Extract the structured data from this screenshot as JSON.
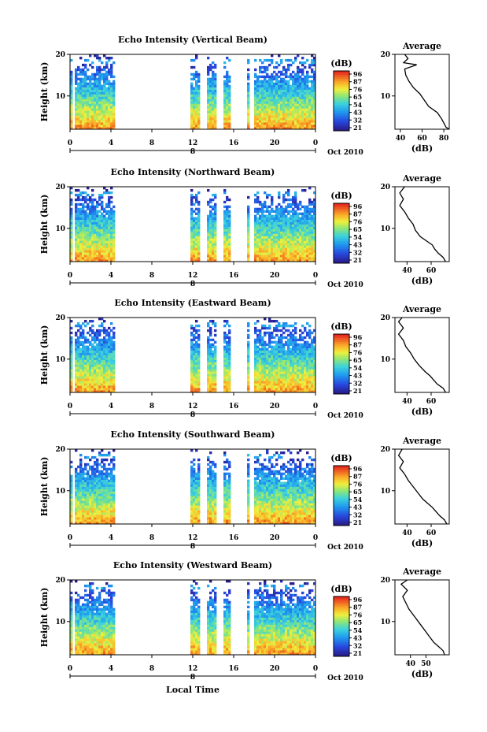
{
  "figure": {
    "xlabel": "Local Time",
    "date_label": "Oct 2010"
  },
  "chart_data": [
    {
      "type": "heatmap",
      "title": "Echo Intensity (Vertical Beam)",
      "ylabel": "Height (km)",
      "xlabel": "Local Time",
      "x_ticks": [
        "0",
        "4",
        "8",
        "12",
        "16",
        "20",
        "0"
      ],
      "day_label": "8",
      "y_ticks": [
        "20",
        "10"
      ],
      "xlim": [
        0,
        24
      ],
      "ylim": [
        2,
        20
      ],
      "data_gaps_hours": [
        [
          4.3,
          11.8
        ],
        [
          12.8,
          13.5
        ],
        [
          14.4,
          14.9
        ],
        [
          15.6,
          17.4
        ],
        [
          17.6,
          18.1
        ],
        [
          18.6,
          18.8
        ]
      ],
      "colorbar": {
        "unit": "(dB)",
        "ticks": [
          "96",
          "87",
          "76",
          "65",
          "54",
          "43",
          "32",
          "21"
        ]
      },
      "average_profile": {
        "title": "Average",
        "xlabel": "(dB)",
        "x_ticks": [
          "40",
          "60",
          "80"
        ],
        "xlim": [
          35,
          85
        ],
        "y_ticks": [
          "20",
          "10"
        ],
        "points": [
          [
            44,
            20
          ],
          [
            47,
            19
          ],
          [
            43,
            18
          ],
          [
            55,
            17.5
          ],
          [
            44,
            16.5
          ],
          [
            45,
            15
          ],
          [
            48,
            13.5
          ],
          [
            52,
            12
          ],
          [
            58,
            10.5
          ],
          [
            62,
            9
          ],
          [
            66,
            7.5
          ],
          [
            74,
            6
          ],
          [
            78,
            4.5
          ],
          [
            80,
            3.5
          ],
          [
            82,
            2.5
          ],
          [
            85,
            2
          ]
        ]
      }
    },
    {
      "type": "heatmap",
      "title": "Echo Intensity (Northward Beam)",
      "ylabel": "Height (km)",
      "xlabel": "Local Time",
      "x_ticks": [
        "0",
        "4",
        "8",
        "12",
        "16",
        "20",
        "0"
      ],
      "day_label": "8",
      "y_ticks": [
        "20",
        "10"
      ],
      "xlim": [
        0,
        24
      ],
      "ylim": [
        2,
        20
      ],
      "data_gaps_hours": [
        [
          4.3,
          11.8
        ],
        [
          12.8,
          13.5
        ],
        [
          14.4,
          14.9
        ],
        [
          15.6,
          17.4
        ],
        [
          17.6,
          18.1
        ]
      ],
      "colorbar": {
        "unit": "(dB)",
        "ticks": [
          "96",
          "87",
          "76",
          "65",
          "54",
          "43",
          "32",
          "21"
        ]
      },
      "average_profile": {
        "title": "Average",
        "xlabel": "(dB)",
        "x_ticks": [
          "40",
          "60"
        ],
        "xlim": [
          30,
          75
        ],
        "y_ticks": [
          "20",
          "10"
        ],
        "points": [
          [
            38,
            20
          ],
          [
            34,
            18.5
          ],
          [
            37,
            17
          ],
          [
            34,
            15.5
          ],
          [
            38,
            14
          ],
          [
            41,
            12.5
          ],
          [
            45,
            11
          ],
          [
            47,
            9.5
          ],
          [
            51,
            8
          ],
          [
            56,
            7
          ],
          [
            61,
            6
          ],
          [
            63,
            5
          ],
          [
            66,
            4
          ],
          [
            70,
            3
          ],
          [
            72,
            2
          ]
        ]
      }
    },
    {
      "type": "heatmap",
      "title": "Echo Intensity (Eastward Beam)",
      "ylabel": "Height (km)",
      "xlabel": "Local Time",
      "x_ticks": [
        "0",
        "4",
        "8",
        "12",
        "16",
        "20",
        "0"
      ],
      "day_label": "8",
      "y_ticks": [
        "20",
        "10"
      ],
      "xlim": [
        0,
        24
      ],
      "ylim": [
        2,
        20
      ],
      "data_gaps_hours": [
        [
          4.3,
          11.8
        ],
        [
          12.8,
          13.5
        ],
        [
          14.4,
          14.9
        ],
        [
          15.6,
          17.4
        ],
        [
          17.6,
          18.1
        ]
      ],
      "colorbar": {
        "unit": "(dB)",
        "ticks": [
          "96",
          "87",
          "76",
          "65",
          "54",
          "43",
          "32",
          "21"
        ]
      },
      "average_profile": {
        "title": "Average",
        "xlabel": "(dB)",
        "x_ticks": [
          "40",
          "60"
        ],
        "xlim": [
          30,
          75
        ],
        "y_ticks": [
          "20",
          "10"
        ],
        "points": [
          [
            36,
            20
          ],
          [
            33,
            19
          ],
          [
            37,
            17.5
          ],
          [
            33,
            16
          ],
          [
            37,
            14.5
          ],
          [
            39,
            13
          ],
          [
            43,
            11.5
          ],
          [
            46,
            10
          ],
          [
            50,
            8.5
          ],
          [
            55,
            7
          ],
          [
            59,
            6
          ],
          [
            62,
            5
          ],
          [
            65,
            4
          ],
          [
            70,
            3
          ],
          [
            72,
            2
          ]
        ]
      }
    },
    {
      "type": "heatmap",
      "title": "Echo Intensity (Southward Beam)",
      "ylabel": "Height (km)",
      "xlabel": "Local Time",
      "x_ticks": [
        "0",
        "4",
        "8",
        "12",
        "16",
        "20",
        "0"
      ],
      "day_label": "8",
      "y_ticks": [
        "20",
        "10"
      ],
      "xlim": [
        0,
        24
      ],
      "ylim": [
        2,
        20
      ],
      "data_gaps_hours": [
        [
          4.3,
          11.8
        ],
        [
          12.8,
          13.5
        ],
        [
          14.4,
          14.9
        ],
        [
          15.6,
          17.4
        ],
        [
          17.6,
          18.1
        ]
      ],
      "colorbar": {
        "unit": "(dB)",
        "ticks": [
          "96",
          "87",
          "76",
          "65",
          "54",
          "43",
          "32",
          "21"
        ]
      },
      "average_profile": {
        "title": "Average",
        "xlabel": "(dB)",
        "x_ticks": [
          "40",
          "60"
        ],
        "xlim": [
          30,
          75
        ],
        "y_ticks": [
          "20",
          "10"
        ],
        "points": [
          [
            36,
            20
          ],
          [
            33,
            18.5
          ],
          [
            37,
            17
          ],
          [
            34,
            15.5
          ],
          [
            38,
            14
          ],
          [
            41,
            12.5
          ],
          [
            45,
            11
          ],
          [
            49,
            9.5
          ],
          [
            53,
            8
          ],
          [
            57,
            7
          ],
          [
            61,
            6
          ],
          [
            64,
            5
          ],
          [
            67,
            4
          ],
          [
            71,
            3
          ],
          [
            73,
            2
          ]
        ]
      }
    },
    {
      "type": "heatmap",
      "title": "Echo Intensity (Westward Beam)",
      "ylabel": "Height (km)",
      "xlabel": "Local Time",
      "x_ticks": [
        "0",
        "4",
        "8",
        "12",
        "16",
        "20",
        "0"
      ],
      "day_label": "8",
      "y_ticks": [
        "20",
        "10"
      ],
      "xlim": [
        0,
        24
      ],
      "ylim": [
        2,
        20
      ],
      "data_gaps_hours": [
        [
          4.3,
          11.8
        ],
        [
          12.8,
          13.5
        ],
        [
          14.4,
          14.9
        ],
        [
          15.6,
          17.4
        ],
        [
          17.6,
          18.1
        ]
      ],
      "colorbar": {
        "unit": "(dB)",
        "ticks": [
          "96",
          "87",
          "76",
          "65",
          "54",
          "43",
          "32",
          "21"
        ]
      },
      "average_profile": {
        "title": "Average",
        "xlabel": "(dB)",
        "x_ticks": [
          "40",
          "50"
        ],
        "xlim": [
          30,
          65
        ],
        "y_ticks": [
          "20",
          "10"
        ],
        "points": [
          [
            38,
            20
          ],
          [
            34,
            19
          ],
          [
            38,
            17.5
          ],
          [
            35,
            16
          ],
          [
            37,
            14.5
          ],
          [
            39,
            13
          ],
          [
            42,
            11.5
          ],
          [
            45,
            10
          ],
          [
            48,
            8.5
          ],
          [
            51,
            7
          ],
          [
            53,
            6
          ],
          [
            55,
            5
          ],
          [
            58,
            4
          ],
          [
            61,
            3
          ],
          [
            62,
            2
          ]
        ]
      }
    }
  ]
}
